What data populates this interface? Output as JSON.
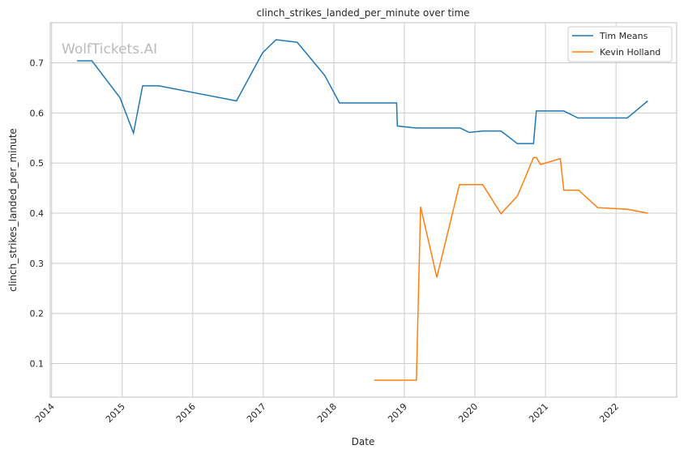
{
  "chart_data": {
    "type": "line",
    "title": "clinch_strikes_landed_per_minute over time",
    "xlabel": "Date",
    "ylabel": "clinch_strikes_landed_per_minute",
    "watermark": "WolfTickets.AI",
    "xlim": [
      2013.98,
      2022.86
    ],
    "ylim": [
      0.033,
      0.78
    ],
    "grid": true,
    "legend_position": "top-right",
    "x_ticks": [
      2014,
      2015,
      2016,
      2017,
      2018,
      2019,
      2020,
      2021,
      2022
    ],
    "x_tick_labels": [
      "2014",
      "2015",
      "2016",
      "2017",
      "2018",
      "2019",
      "2020",
      "2021",
      "2022"
    ],
    "y_ticks": [
      0.1,
      0.2,
      0.3,
      0.4,
      0.5,
      0.6,
      0.7
    ],
    "y_tick_labels": [
      "0.1",
      "0.2",
      "0.3",
      "0.4",
      "0.5",
      "0.6",
      "0.7"
    ],
    "series": [
      {
        "name": "Tim Means",
        "color": "#1f77b4",
        "x": [
          2014.36,
          2014.57,
          2014.97,
          2015.16,
          2015.29,
          2015.52,
          2016.62,
          2016.99,
          2017.18,
          2017.48,
          2017.87,
          2018.08,
          2018.89,
          2018.9,
          2019.16,
          2019.79,
          2019.92,
          2020.11,
          2020.37,
          2020.6,
          2020.83,
          2020.87,
          2021.26,
          2021.46,
          2022.16,
          2022.45
        ],
        "y": [
          0.704,
          0.704,
          0.63,
          0.56,
          0.654,
          0.654,
          0.624,
          0.72,
          0.746,
          0.741,
          0.675,
          0.62,
          0.62,
          0.574,
          0.57,
          0.57,
          0.561,
          0.564,
          0.564,
          0.539,
          0.539,
          0.604,
          0.604,
          0.59,
          0.59,
          0.624
        ]
      },
      {
        "name": "Kevin Holland",
        "color": "#ff7f0e",
        "x": [
          2018.57,
          2019.17,
          2019.23,
          2019.46,
          2019.78,
          2020.11,
          2020.37,
          2020.6,
          2020.71,
          2020.83,
          2020.87,
          2020.93,
          2021.21,
          2021.26,
          2021.47,
          2021.74,
          2022.16,
          2022.45
        ],
        "y": [
          0.067,
          0.067,
          0.413,
          0.272,
          0.457,
          0.457,
          0.399,
          0.434,
          0.47,
          0.511,
          0.511,
          0.497,
          0.509,
          0.446,
          0.446,
          0.411,
          0.408,
          0.4
        ]
      }
    ]
  }
}
